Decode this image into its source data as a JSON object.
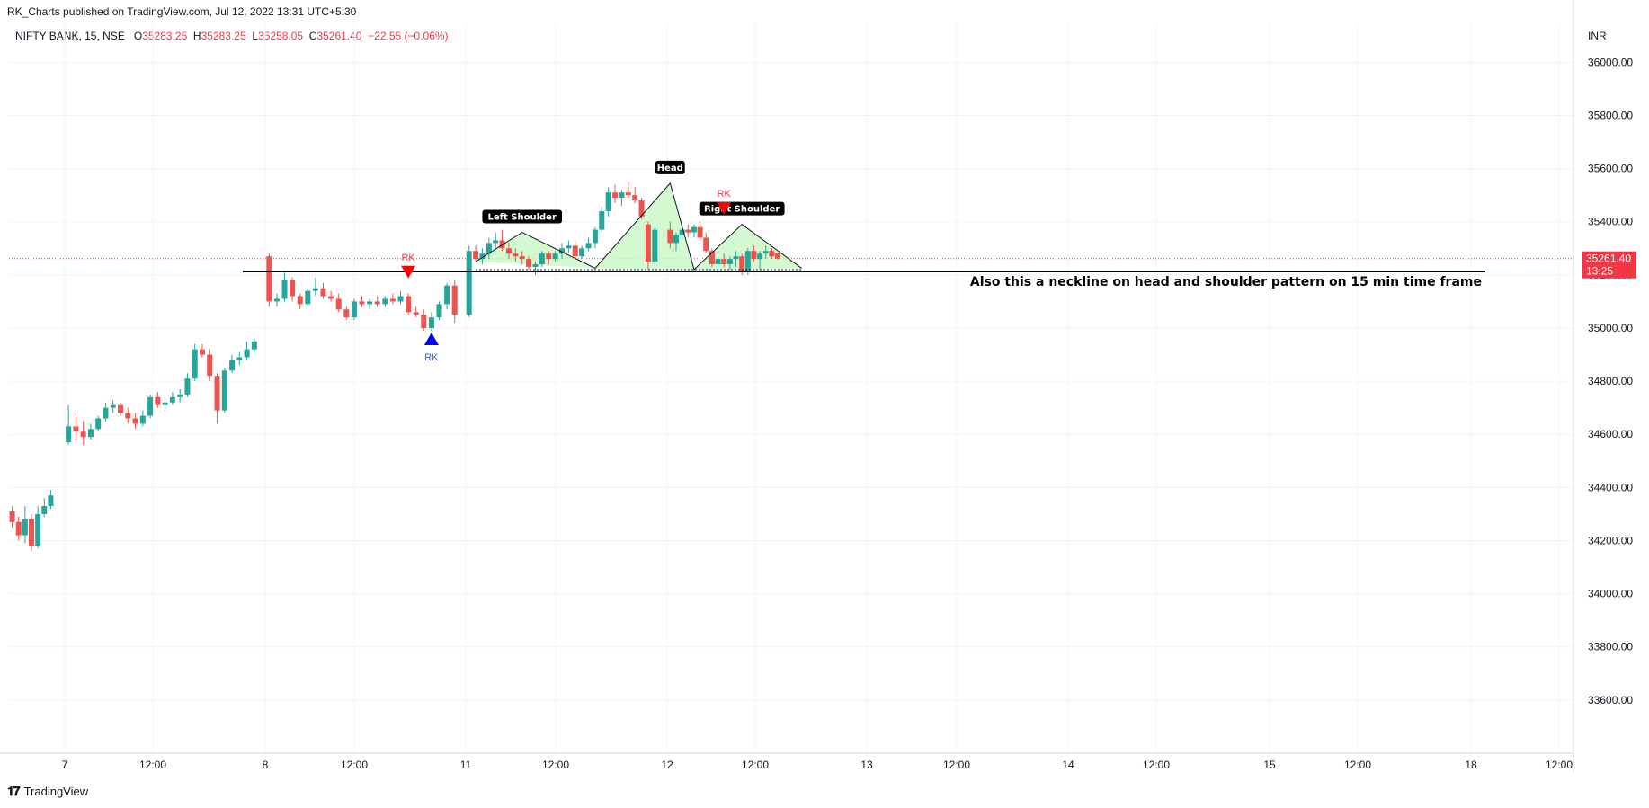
{
  "header": {
    "published": "RK_Charts published on TradingView.com, Jul 12, 2022 13:31 UTC+5:30"
  },
  "legend": {
    "symbol": "NIFTY BANK, 15, NSE",
    "o_label": "O",
    "o": "35283.25",
    "h_label": "H",
    "h": "35283.25",
    "l_label": "L",
    "l": "35258.05",
    "c_label": "C",
    "c": "35261.40",
    "change": "−22.55 (−0.06%)"
  },
  "footer": {
    "logo_text": "TradingView"
  },
  "colors": {
    "up": "#26a69a",
    "down": "#ef5350",
    "pattern_fill": "#c8f7c5",
    "price_tag": "#f23645",
    "grid": "#f0f3fa"
  },
  "chart_data": {
    "type": "candlestick",
    "currency": "INR",
    "ylim": [
      33400,
      36150
    ],
    "y_ticks": [
      "36000.00",
      "35800.00",
      "35600.00",
      "35400.00",
      "35200.00",
      "35000.00",
      "34800.00",
      "34600.00",
      "34400.00",
      "34200.00",
      "34000.00",
      "33800.00",
      "33600.00"
    ],
    "x_ticks": [
      "7",
      "12:00",
      "8",
      "12:00",
      "11",
      "12:00",
      "12",
      "12:00",
      "13",
      "12:00",
      "14",
      "12:00",
      "15",
      "12:00",
      "18",
      "12:00"
    ],
    "last_price": "35261.40",
    "countdown": "13:25",
    "annotations": {
      "left_shoulder": "Left Shoulder",
      "head": "Head",
      "right_shoulder": "Right Shoulder",
      "neckline_text": "Also this a neckline on head and shoulder pattern on 15 min time frame",
      "signal_label": "RK"
    },
    "neckline_price": 35220,
    "candles": [
      [
        34310,
        34330,
        34250,
        34270
      ],
      [
        34270,
        34290,
        34200,
        34220
      ],
      [
        34220,
        34330,
        34190,
        34280
      ],
      [
        34280,
        34300,
        34160,
        34180
      ],
      [
        34180,
        34330,
        34170,
        34300
      ],
      [
        34300,
        34360,
        34290,
        34330
      ],
      [
        34330,
        34390,
        34320,
        34370
      ],
      [
        34570,
        34710,
        34560,
        34630
      ],
      [
        34630,
        34680,
        34580,
        34610
      ],
      [
        34610,
        34650,
        34560,
        34590
      ],
      [
        34590,
        34640,
        34580,
        34620
      ],
      [
        34620,
        34670,
        34610,
        34660
      ],
      [
        34660,
        34720,
        34650,
        34700
      ],
      [
        34700,
        34730,
        34680,
        34710
      ],
      [
        34710,
        34720,
        34670,
        34680
      ],
      [
        34680,
        34700,
        34640,
        34660
      ],
      [
        34660,
        34680,
        34620,
        34640
      ],
      [
        34640,
        34690,
        34630,
        34670
      ],
      [
        34670,
        34750,
        34660,
        34740
      ],
      [
        34740,
        34760,
        34700,
        34710
      ],
      [
        34710,
        34740,
        34690,
        34720
      ],
      [
        34720,
        34760,
        34710,
        34740
      ],
      [
        34740,
        34770,
        34720,
        34750
      ],
      [
        34750,
        34830,
        34740,
        34810
      ],
      [
        34810,
        34940,
        34800,
        34920
      ],
      [
        34920,
        34940,
        34890,
        34900
      ],
      [
        34900,
        34920,
        34800,
        34820
      ],
      [
        34820,
        34830,
        34640,
        34690
      ],
      [
        34690,
        34850,
        34680,
        34840
      ],
      [
        34840,
        34900,
        34830,
        34880
      ],
      [
        34880,
        34910,
        34860,
        34890
      ],
      [
        34890,
        34950,
        34880,
        34920
      ],
      [
        34920,
        34960,
        34910,
        34950
      ],
      [
        35270,
        35280,
        35080,
        35100
      ],
      [
        35100,
        35130,
        35080,
        35110
      ],
      [
        35110,
        35210,
        35100,
        35180
      ],
      [
        35180,
        35190,
        35100,
        35120
      ],
      [
        35120,
        35130,
        35070,
        35090
      ],
      [
        35090,
        35150,
        35080,
        35140
      ],
      [
        35140,
        35190,
        35120,
        35150
      ],
      [
        35150,
        35170,
        35110,
        35120
      ],
      [
        35120,
        35140,
        35100,
        35110
      ],
      [
        35110,
        35130,
        35060,
        35070
      ],
      [
        35070,
        35080,
        35030,
        35040
      ],
      [
        35040,
        35110,
        35030,
        35100
      ],
      [
        35100,
        35120,
        35080,
        35090
      ],
      [
        35090,
        35110,
        35070,
        35100
      ],
      [
        35100,
        35120,
        35080,
        35090
      ],
      [
        35090,
        35120,
        35080,
        35110
      ],
      [
        35110,
        35130,
        35090,
        35100
      ],
      [
        35100,
        35140,
        35090,
        35120
      ],
      [
        35120,
        35130,
        35050,
        35060
      ],
      [
        35060,
        35080,
        35040,
        35050
      ],
      [
        35050,
        35070,
        34990,
        35000
      ],
      [
        35000,
        35060,
        34990,
        35040
      ],
      [
        35040,
        35100,
        35030,
        35090
      ],
      [
        35090,
        35170,
        35070,
        35160
      ],
      [
        35160,
        35180,
        35020,
        35050
      ],
      [
        35050,
        35310,
        35040,
        35290
      ],
      [
        35290,
        35310,
        35250,
        35260
      ],
      [
        35260,
        35300,
        35240,
        35280
      ],
      [
        35280,
        35340,
        35260,
        35320
      ],
      [
        35320,
        35360,
        35300,
        35330
      ],
      [
        35330,
        35370,
        35290,
        35300
      ],
      [
        35300,
        35320,
        35260,
        35280
      ],
      [
        35280,
        35300,
        35250,
        35270
      ],
      [
        35270,
        35290,
        35240,
        35260
      ],
      [
        35260,
        35270,
        35220,
        35230
      ],
      [
        35230,
        35250,
        35200,
        35240
      ],
      [
        35240,
        35290,
        35230,
        35280
      ],
      [
        35280,
        35290,
        35240,
        35260
      ],
      [
        35260,
        35290,
        35250,
        35280
      ],
      [
        35280,
        35320,
        35260,
        35300
      ],
      [
        35300,
        35330,
        35280,
        35310
      ],
      [
        35310,
        35330,
        35260,
        35270
      ],
      [
        35270,
        35310,
        35260,
        35300
      ],
      [
        35300,
        35340,
        35290,
        35320
      ],
      [
        35320,
        35380,
        35300,
        35370
      ],
      [
        35370,
        35460,
        35360,
        35440
      ],
      [
        35440,
        35530,
        35420,
        35510
      ],
      [
        35510,
        35540,
        35470,
        35490
      ],
      [
        35490,
        35520,
        35460,
        35510
      ],
      [
        35510,
        35550,
        35490,
        35500
      ],
      [
        35500,
        35530,
        35470,
        35480
      ],
      [
        35480,
        35490,
        35410,
        35420
      ],
      [
        35390,
        35400,
        35220,
        35250
      ],
      [
        35250,
        35380,
        35240,
        35370
      ],
      [
        35370,
        35400,
        35300,
        35320
      ],
      [
        35320,
        35360,
        35290,
        35350
      ],
      [
        35350,
        35380,
        35330,
        35370
      ],
      [
        35370,
        35390,
        35340,
        35360
      ],
      [
        35360,
        35390,
        35340,
        35380
      ],
      [
        35380,
        35400,
        35330,
        35340
      ],
      [
        35340,
        35360,
        35280,
        35290
      ],
      [
        35290,
        35300,
        35230,
        35240
      ],
      [
        35240,
        35270,
        35210,
        35260
      ],
      [
        35260,
        35280,
        35230,
        35240
      ],
      [
        35240,
        35270,
        35220,
        35260
      ],
      [
        35260,
        35290,
        35230,
        35270
      ],
      [
        35270,
        35280,
        35200,
        35210
      ],
      [
        35210,
        35300,
        35200,
        35290
      ],
      [
        35290,
        35310,
        35250,
        35260
      ],
      [
        35260,
        35290,
        35220,
        35280
      ],
      [
        35280,
        35310,
        35260,
        35290
      ],
      [
        35290,
        35300,
        35260,
        35270
      ],
      [
        35283,
        35283,
        35258,
        35261
      ]
    ],
    "shoulders_pattern": [
      [
        59,
        35250
      ],
      [
        66,
        35360
      ],
      [
        77,
        35225
      ],
      [
        87,
        35545
      ],
      [
        91,
        35220
      ],
      [
        99,
        35390
      ],
      [
        109,
        35225
      ]
    ],
    "signals": [
      {
        "type": "sell",
        "index": 51,
        "price": 35180
      },
      {
        "type": "buy",
        "index": 54,
        "price": 34990
      },
      {
        "type": "sell",
        "index": 96,
        "price": 35420
      }
    ]
  }
}
